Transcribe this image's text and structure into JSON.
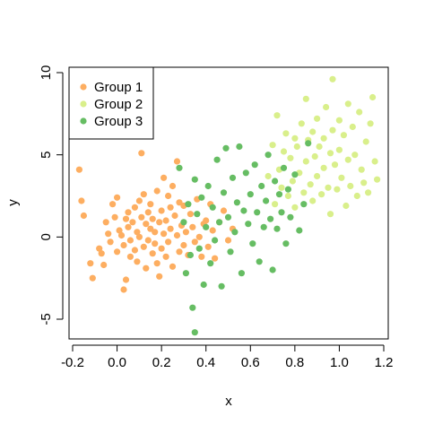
{
  "chart_data": {
    "type": "scatter",
    "title": "",
    "xlabel": "x",
    "ylabel": "y",
    "xlim": [
      -0.2,
      1.2
    ],
    "ylim": [
      -5,
      10
    ],
    "xticks": [
      -0.2,
      0.0,
      0.2,
      0.4,
      0.6,
      0.8,
      1.0,
      1.2
    ],
    "xtick_labels": [
      "-0.2",
      "0.0",
      "0.2",
      "0.4",
      "0.6",
      "0.8",
      "1.0",
      "1.2"
    ],
    "yticks": [
      -5,
      0,
      5,
      10
    ],
    "ytick_labels": [
      "-5",
      "0",
      "5",
      "10"
    ],
    "grid": false,
    "legend_position": "top-left",
    "series": [
      {
        "name": "Group 1",
        "color": "#FDAE61",
        "points": [
          [
            -0.17,
            4.1
          ],
          [
            -0.16,
            2.2
          ],
          [
            -0.15,
            1.3
          ],
          [
            -0.12,
            -1.6
          ],
          [
            -0.11,
            -2.5
          ],
          [
            -0.08,
            -0.7
          ],
          [
            -0.07,
            -1.0
          ],
          [
            -0.06,
            -1.7
          ],
          [
            -0.05,
            0.9
          ],
          [
            -0.04,
            0.2
          ],
          [
            -0.03,
            -0.3
          ],
          [
            -0.02,
            2.0
          ],
          [
            -0.01,
            1.2
          ],
          [
            0.0,
            -0.9
          ],
          [
            0.0,
            2.4
          ],
          [
            0.01,
            0.4
          ],
          [
            0.02,
            0.1
          ],
          [
            0.03,
            -0.5
          ],
          [
            0.03,
            -3.2
          ],
          [
            0.04,
            1.1
          ],
          [
            0.04,
            -2.6
          ],
          [
            0.05,
            0.6
          ],
          [
            0.05,
            1.5
          ],
          [
            0.06,
            -0.2
          ],
          [
            0.06,
            -1.2
          ],
          [
            0.07,
            0.9
          ],
          [
            0.08,
            -0.8
          ],
          [
            0.08,
            1.8
          ],
          [
            0.09,
            0.3
          ],
          [
            0.09,
            -1.5
          ],
          [
            0.1,
            2.2
          ],
          [
            0.1,
            0.0
          ],
          [
            0.11,
            5.1
          ],
          [
            0.11,
            1.2
          ],
          [
            0.12,
            -0.6
          ],
          [
            0.12,
            2.6
          ],
          [
            0.13,
            0.8
          ],
          [
            0.13,
            -1.9
          ],
          [
            0.14,
            1.5
          ],
          [
            0.14,
            -0.2
          ],
          [
            0.15,
            0.5
          ],
          [
            0.15,
            2.0
          ],
          [
            0.16,
            -1.0
          ],
          [
            0.16,
            1.1
          ],
          [
            0.17,
            -0.4
          ],
          [
            0.17,
            0.3
          ],
          [
            0.18,
            2.8
          ],
          [
            0.18,
            -1.6
          ],
          [
            0.19,
            0.9
          ],
          [
            0.19,
            -2.4
          ],
          [
            0.2,
            1.6
          ],
          [
            0.2,
            -0.7
          ],
          [
            0.21,
            3.6
          ],
          [
            0.21,
            0.2
          ],
          [
            0.22,
            -1.2
          ],
          [
            0.22,
            1.0
          ],
          [
            0.23,
            2.5
          ],
          [
            0.23,
            -0.3
          ],
          [
            0.24,
            1.8
          ],
          [
            0.24,
            0.5
          ],
          [
            0.25,
            3.1
          ],
          [
            0.25,
            -1.8
          ],
          [
            0.26,
            1.3
          ],
          [
            0.27,
            4.6
          ],
          [
            0.27,
            0.1
          ],
          [
            0.28,
            -0.9
          ],
          [
            0.28,
            2.1
          ],
          [
            0.29,
            0.7
          ],
          [
            0.3,
            -0.5
          ],
          [
            0.3,
            1.9
          ],
          [
            0.31,
            0.3
          ],
          [
            0.32,
            -1.1
          ],
          [
            0.33,
            1.4
          ],
          [
            0.34,
            0.6
          ],
          [
            0.35,
            -0.3
          ],
          [
            0.36,
            2.3
          ],
          [
            0.37,
            0.0
          ],
          [
            0.38,
            -1.2
          ],
          [
            0.39,
            0.8
          ],
          [
            0.4,
            1.0
          ],
          [
            0.41,
            -0.6
          ],
          [
            0.42,
            2.0
          ],
          [
            0.43,
            0.4
          ],
          [
            0.44,
            -1.3
          ],
          [
            0.46,
            0.9
          ],
          [
            0.48,
            1.6
          ],
          [
            0.5,
            -0.2
          ],
          [
            0.52,
            0.5
          ]
        ]
      },
      {
        "name": "Group 2",
        "color": "#D9EF8B",
        "points": [
          [
            0.68,
            3.7
          ],
          [
            0.7,
            5.6
          ],
          [
            0.71,
            2.0
          ],
          [
            0.72,
            7.4
          ],
          [
            0.73,
            4.1
          ],
          [
            0.74,
            3.0
          ],
          [
            0.75,
            5.2
          ],
          [
            0.76,
            6.3
          ],
          [
            0.77,
            2.5
          ],
          [
            0.78,
            4.8
          ],
          [
            0.79,
            3.4
          ],
          [
            0.8,
            6.0
          ],
          [
            0.8,
            1.8
          ],
          [
            0.81,
            5.5
          ],
          [
            0.82,
            3.9
          ],
          [
            0.83,
            6.9
          ],
          [
            0.84,
            2.7
          ],
          [
            0.85,
            4.6
          ],
          [
            0.85,
            8.4
          ],
          [
            0.86,
            5.9
          ],
          [
            0.87,
            3.2
          ],
          [
            0.88,
            6.4
          ],
          [
            0.88,
            2.2
          ],
          [
            0.89,
            4.9
          ],
          [
            0.9,
            7.2
          ],
          [
            0.9,
            3.7
          ],
          [
            0.91,
            5.5
          ],
          [
            0.92,
            2.6
          ],
          [
            0.93,
            6.0
          ],
          [
            0.93,
            4.2
          ],
          [
            0.94,
            7.9
          ],
          [
            0.95,
            3.0
          ],
          [
            0.96,
            5.1
          ],
          [
            0.96,
            1.4
          ],
          [
            0.97,
            9.6
          ],
          [
            0.97,
            6.5
          ],
          [
            0.98,
            4.4
          ],
          [
            0.99,
            2.9
          ],
          [
            1.0,
            7.1
          ],
          [
            1.0,
            5.3
          ],
          [
            1.01,
            3.6
          ],
          [
            1.02,
            6.2
          ],
          [
            1.03,
            1.9
          ],
          [
            1.04,
            8.1
          ],
          [
            1.04,
            4.7
          ],
          [
            1.05,
            3.1
          ],
          [
            1.06,
            6.7
          ],
          [
            1.07,
            5.0
          ],
          [
            1.08,
            2.5
          ],
          [
            1.09,
            7.6
          ],
          [
            1.1,
            4.1
          ],
          [
            1.11,
            3.3
          ],
          [
            1.12,
            5.8
          ],
          [
            1.13,
            2.7
          ],
          [
            1.14,
            6.9
          ],
          [
            1.15,
            8.5
          ],
          [
            1.16,
            4.6
          ],
          [
            1.17,
            3.5
          ]
        ]
      },
      {
        "name": "Group 3",
        "color": "#66BD63",
        "points": [
          [
            0.28,
            4.2
          ],
          [
            0.3,
            0.9
          ],
          [
            0.31,
            -2.2
          ],
          [
            0.32,
            2.0
          ],
          [
            0.33,
            -1.1
          ],
          [
            0.34,
            -4.3
          ],
          [
            0.35,
            -5.8
          ],
          [
            0.35,
            3.5
          ],
          [
            0.36,
            1.4
          ],
          [
            0.37,
            -0.7
          ],
          [
            0.38,
            2.4
          ],
          [
            0.39,
            -2.9
          ],
          [
            0.4,
            0.6
          ],
          [
            0.41,
            3.1
          ],
          [
            0.42,
            -1.6
          ],
          [
            0.43,
            1.8
          ],
          [
            0.44,
            -0.2
          ],
          [
            0.45,
            4.7
          ],
          [
            0.46,
            0.9
          ],
          [
            0.47,
            -3.0
          ],
          [
            0.48,
            2.7
          ],
          [
            0.49,
            5.4
          ],
          [
            0.5,
            1.2
          ],
          [
            0.51,
            -0.9
          ],
          [
            0.52,
            3.6
          ],
          [
            0.53,
            0.3
          ],
          [
            0.54,
            2.1
          ],
          [
            0.55,
            5.5
          ],
          [
            0.56,
            -2.2
          ],
          [
            0.57,
            1.6
          ],
          [
            0.58,
            3.9
          ],
          [
            0.59,
            0.8
          ],
          [
            0.6,
            2.6
          ],
          [
            0.61,
            -0.4
          ],
          [
            0.62,
            4.4
          ],
          [
            0.63,
            1.5
          ],
          [
            0.64,
            -1.5
          ],
          [
            0.65,
            3.1
          ],
          [
            0.66,
            0.6
          ],
          [
            0.67,
            2.2
          ],
          [
            0.68,
            5.0
          ],
          [
            0.69,
            1.1
          ],
          [
            0.7,
            -2.0
          ],
          [
            0.71,
            3.4
          ],
          [
            0.72,
            0.5
          ],
          [
            0.73,
            2.6
          ],
          [
            0.74,
            1.5
          ],
          [
            0.75,
            4.2
          ],
          [
            0.76,
            -0.4
          ],
          [
            0.77,
            2.9
          ],
          [
            0.78,
            1.2
          ],
          [
            0.8,
            3.8
          ],
          [
            0.82,
            0.4
          ],
          [
            0.84,
            2.0
          ],
          [
            0.86,
            5.7
          ]
        ]
      }
    ]
  }
}
